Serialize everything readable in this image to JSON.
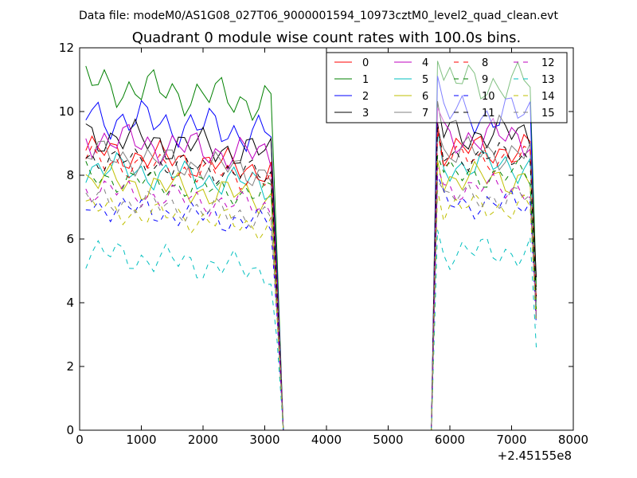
{
  "chart_data": {
    "type": "line",
    "suptitle": "Data file: modeM0/AS1G08_027T06_9000001594_10973cztM0_level2_quad_clean.evt",
    "title": "Quadrant 0 module wise count rates with 100.0s bins.",
    "xlabel": "",
    "ylabel": "",
    "xlim": [
      0,
      8000
    ],
    "ylim": [
      0,
      12
    ],
    "x_ticks": [
      0,
      1000,
      2000,
      3000,
      4000,
      5000,
      6000,
      7000,
      8000
    ],
    "y_ticks": [
      0,
      2,
      4,
      6,
      8,
      10,
      12
    ],
    "x_offset_label": "+2.45155e8",
    "legend_position": "top-right",
    "x": [
      100,
      200,
      300,
      400,
      500,
      600,
      700,
      800,
      900,
      1000,
      1100,
      1200,
      1300,
      1400,
      1500,
      1600,
      1700,
      1800,
      1900,
      2000,
      2100,
      2200,
      2300,
      2400,
      2500,
      2600,
      2700,
      2800,
      2900,
      3000,
      3100,
      3200,
      3300,
      3400,
      3500,
      3600,
      3700,
      3800,
      3900,
      4000,
      4100,
      4200,
      4300,
      4400,
      4500,
      4600,
      4700,
      4800,
      4900,
      5000,
      5100,
      5200,
      5300,
      5400,
      5500,
      5600,
      5700,
      5800,
      5900,
      6000,
      6100,
      6200,
      6300,
      6400,
      6500,
      6600,
      6700,
      6800,
      6900,
      7000,
      7100,
      7200,
      7300,
      7400
    ],
    "series": [
      {
        "name": "0",
        "color": "#ff0000",
        "dash": "solid",
        "base": 8.8,
        "amp": 0.35,
        "endval": 4.2
      },
      {
        "name": "1",
        "color": "#008000",
        "dash": "solid",
        "base": 10.9,
        "amp": 0.45,
        "endval": 4.5
      },
      {
        "name": "2",
        "color": "#0000ff",
        "dash": "solid",
        "base": 9.9,
        "amp": 0.45,
        "endval": 3.5
      },
      {
        "name": "3",
        "color": "#000000",
        "dash": "solid",
        "base": 9.3,
        "amp": 0.4,
        "endval": 4.8
      },
      {
        "name": "4",
        "color": "#bf00bf",
        "dash": "solid",
        "base": 9.2,
        "amp": 0.4,
        "endval": 4.0
      },
      {
        "name": "5",
        "color": "#00bfbf",
        "dash": "solid",
        "base": 8.3,
        "amp": 0.35,
        "endval": 3.9
      },
      {
        "name": "6",
        "color": "#bfbf00",
        "dash": "solid",
        "base": 7.9,
        "amp": 0.35,
        "endval": 3.7
      },
      {
        "name": "7",
        "color": "#808080",
        "dash": "solid",
        "base": 8.7,
        "amp": 0.35,
        "endval": 4.1
      },
      {
        "name": "8",
        "color": "#ff0000",
        "dash": "dashed",
        "base": 8.5,
        "amp": 0.3,
        "endval": 4.0
      },
      {
        "name": "9",
        "color": "#008000",
        "dash": "dashed",
        "base": 8.0,
        "amp": 0.3,
        "endval": 3.8
      },
      {
        "name": "10",
        "color": "#0000ff",
        "dash": "dashed",
        "base": 7.1,
        "amp": 0.3,
        "endval": 3.3
      },
      {
        "name": "11",
        "color": "#000000",
        "dash": "dashed",
        "base": 8.6,
        "amp": 0.3,
        "endval": 4.2
      },
      {
        "name": "12",
        "color": "#bf00bf",
        "dash": "dashed",
        "base": 7.6,
        "amp": 0.3,
        "endval": 3.6
      },
      {
        "name": "13",
        "color": "#00bfbf",
        "dash": "dashed",
        "base": 5.6,
        "amp": 0.35,
        "endval": 2.6
      },
      {
        "name": "14",
        "color": "#bfbf00",
        "dash": "dashed",
        "base": 7.0,
        "amp": 0.3,
        "endval": 3.4
      },
      {
        "name": "15",
        "color": "#808080",
        "dash": "dashed",
        "base": 7.3,
        "amp": 0.3,
        "endval": 3.5
      }
    ],
    "gap": {
      "start": 3300,
      "end": 5700,
      "value": 0
    }
  }
}
